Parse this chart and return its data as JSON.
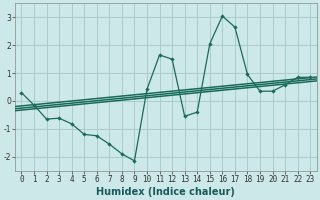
{
  "title": "",
  "xlabel": "Humidex (Indice chaleur)",
  "ylabel": "",
  "bg_color": "#cce8e8",
  "grid_color": "#aacccc",
  "line_color": "#1a6b5a",
  "x_data": [
    0,
    1,
    2,
    3,
    4,
    5,
    6,
    7,
    8,
    9,
    10,
    11,
    12,
    13,
    14,
    15,
    16,
    17,
    18,
    19,
    20,
    21,
    22,
    23
  ],
  "y_main": [
    0.3,
    -0.15,
    -0.65,
    -0.62,
    -0.82,
    -1.2,
    -1.25,
    -1.55,
    -1.9,
    -2.15,
    0.42,
    1.65,
    1.5,
    -0.55,
    -0.4,
    2.05,
    3.05,
    2.65,
    0.95,
    0.35,
    0.35,
    0.58,
    0.85,
    0.85
  ],
  "trend1": [
    -0.35,
    0.72
  ],
  "trend2": [
    -0.28,
    0.79
  ],
  "trend3": [
    -0.2,
    0.86
  ],
  "xlim": [
    -0.5,
    23.5
  ],
  "ylim": [
    -2.5,
    3.5
  ],
  "yticks": [
    -2,
    -1,
    0,
    1,
    2,
    3
  ],
  "xticks": [
    0,
    1,
    2,
    3,
    4,
    5,
    6,
    7,
    8,
    9,
    10,
    11,
    12,
    13,
    14,
    15,
    16,
    17,
    18,
    19,
    20,
    21,
    22,
    23
  ],
  "xlabel_fontsize": 7,
  "tick_fontsize": 5.5
}
